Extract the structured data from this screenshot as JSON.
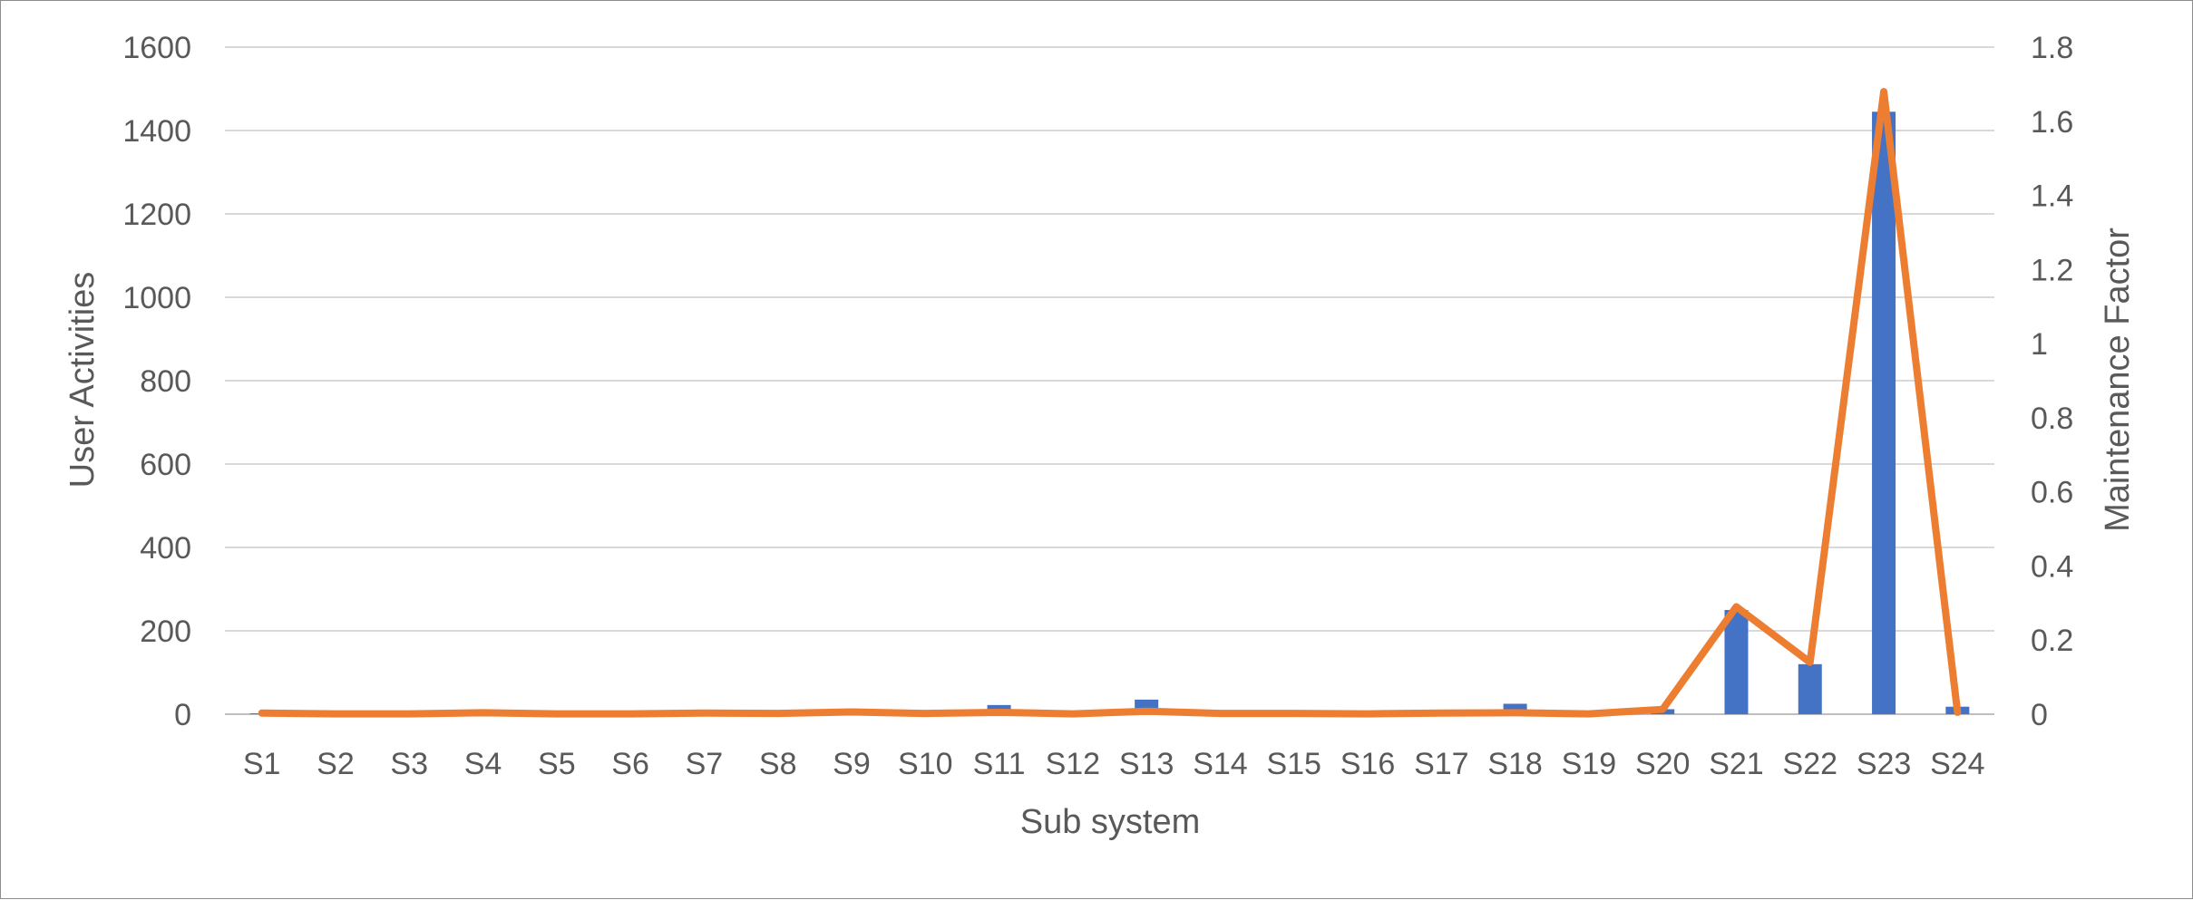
{
  "chart_data": {
    "type": "bar",
    "categories": [
      "S1",
      "S2",
      "S3",
      "S4",
      "S5",
      "S6",
      "S7",
      "S8",
      "S9",
      "S10",
      "S11",
      "S12",
      "S13",
      "S14",
      "S15",
      "S16",
      "S17",
      "S18",
      "S19",
      "S20",
      "S21",
      "S22",
      "S23",
      "S24"
    ],
    "series": [
      {
        "type": "bar",
        "axis": "left",
        "color": "#4472c4",
        "values": [
          2,
          1,
          1,
          4,
          1,
          1,
          3,
          2,
          10,
          3,
          22,
          3,
          35,
          4,
          3,
          2,
          4,
          25,
          2,
          12,
          250,
          120,
          1445,
          18
        ]
      },
      {
        "type": "line",
        "axis": "right",
        "color": "#ed7d31",
        "values": [
          0.003,
          0.001,
          0.001,
          0.004,
          0.001,
          0.001,
          0.003,
          0.002,
          0.006,
          0.002,
          0.005,
          0.001,
          0.008,
          0.002,
          0.002,
          0.001,
          0.003,
          0.004,
          0.001,
          0.013,
          0.29,
          0.14,
          1.68,
          0.005
        ]
      }
    ],
    "xlabel": "Sub system",
    "ylabel": "User Activities",
    "y2label": "Maintenance Factor",
    "ylim": [
      0,
      1600
    ],
    "y2lim": [
      0,
      1.8
    ],
    "yticks": [
      "0",
      "200",
      "400",
      "600",
      "800",
      "1000",
      "1200",
      "1400",
      "1600"
    ],
    "y2ticks": [
      "0",
      "0.2",
      "0.4",
      "0.6",
      "0.8",
      "1",
      "1.2",
      "1.4",
      "1.6",
      "1.8"
    ],
    "grid": true,
    "colors": {
      "gridline": "#d9d9d9",
      "text": "#595959",
      "bar": "#4472c4",
      "line": "#ed7d31"
    }
  }
}
